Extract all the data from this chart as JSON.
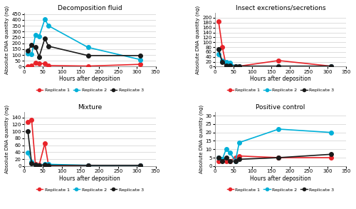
{
  "titles": [
    "Decomposition fluid",
    "Insect excretions/secretions",
    "Mixture",
    "Positive control"
  ],
  "ylabel": "Absolute DNA quantity (ng)",
  "xlabel": "Hours after deposition",
  "colors": {
    "r1": "#e8242a",
    "r2": "#00b0d8",
    "r3": "#1a1a1a"
  },
  "marker": "o",
  "markersize": 4,
  "linewidth": 1.2,
  "series": {
    "decomp": {
      "r1": {
        "x": [
          10,
          20,
          30,
          40,
          55,
          65,
          170,
          310
        ],
        "y": [
          5,
          10,
          35,
          30,
          25,
          10,
          5,
          20
        ]
      },
      "r2": {
        "x": [
          10,
          20,
          30,
          40,
          55,
          65,
          170,
          310
        ],
        "y": [
          110,
          105,
          270,
          260,
          405,
          350,
          165,
          60
        ]
      },
      "r3": {
        "x": [
          10,
          20,
          30,
          40,
          55,
          65,
          170,
          310
        ],
        "y": [
          135,
          185,
          165,
          85,
          240,
          175,
          95,
          95
        ]
      }
    },
    "insect": {
      "r1": {
        "x": [
          10,
          20,
          30,
          40,
          55,
          65,
          170,
          310
        ],
        "y": [
          185,
          80,
          5,
          3,
          2,
          2,
          25,
          2
        ]
      },
      "r2": {
        "x": [
          10,
          20,
          30,
          40,
          55,
          65,
          170,
          310
        ],
        "y": [
          50,
          25,
          20,
          15,
          2,
          2,
          2,
          2
        ]
      },
      "r3": {
        "x": [
          10,
          20,
          30,
          40,
          55,
          65,
          170,
          310
        ],
        "y": [
          70,
          20,
          5,
          3,
          2,
          2,
          2,
          2
        ]
      }
    },
    "mixture": {
      "r1": {
        "x": [
          10,
          20,
          30,
          40,
          55,
          65,
          170,
          310
        ],
        "y": [
          128,
          133,
          5,
          3,
          65,
          2,
          2,
          2
        ]
      },
      "r2": {
        "x": [
          10,
          20,
          30,
          40,
          55,
          65,
          170,
          310
        ],
        "y": [
          38,
          12,
          3,
          2,
          5,
          5,
          2,
          2
        ]
      },
      "r3": {
        "x": [
          10,
          20,
          30,
          40,
          55,
          65,
          170,
          310
        ],
        "y": [
          100,
          8,
          4,
          2,
          3,
          2,
          2,
          2
        ]
      }
    },
    "positive": {
      "r1": {
        "x": [
          10,
          20,
          30,
          40,
          55,
          65,
          170,
          310
        ],
        "y": [
          3,
          4,
          3,
          3,
          5,
          6,
          5,
          5
        ]
      },
      "r2": {
        "x": [
          10,
          20,
          30,
          40,
          55,
          65,
          170,
          310
        ],
        "y": [
          5,
          4,
          10,
          8,
          3,
          14,
          22,
          20
        ]
      },
      "r3": {
        "x": [
          10,
          20,
          30,
          40,
          55,
          65,
          170,
          310
        ],
        "y": [
          5,
          3,
          5,
          3,
          3,
          4,
          5,
          7
        ]
      }
    }
  },
  "ylims": {
    "decomp": [
      0,
      460
    ],
    "insect": [
      0,
      220
    ],
    "mixture": [
      0,
      155
    ],
    "positive": [
      0,
      32
    ]
  },
  "yticks": {
    "decomp": [
      0,
      50,
      100,
      150,
      200,
      250,
      300,
      350,
      400,
      450
    ],
    "insect": [
      0,
      20,
      40,
      60,
      80,
      100,
      120,
      140,
      160,
      180,
      200
    ],
    "mixture": [
      0,
      20,
      40,
      60,
      80,
      100,
      120,
      140
    ],
    "positive": [
      0,
      5,
      10,
      15,
      20,
      25,
      30
    ]
  },
  "xticks": [
    0,
    50,
    100,
    150,
    200,
    250,
    300,
    350
  ],
  "xlim": [
    0,
    350
  ],
  "legend_labels": [
    "Replicate 1",
    "Replicate 2",
    "Replicate 3"
  ],
  "bg_color": "#ffffff",
  "grid_color": "#d0d0d0"
}
